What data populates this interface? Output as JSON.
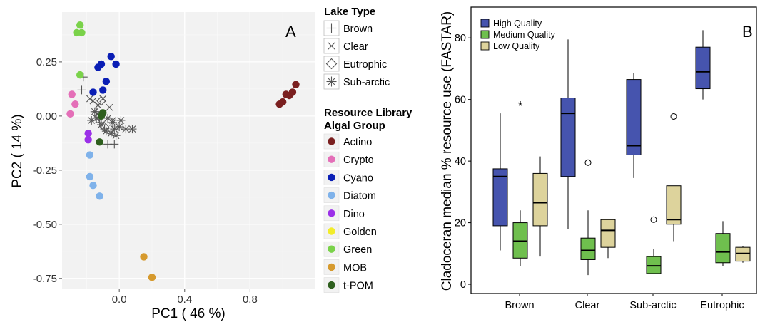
{
  "chart_data": [
    {
      "type": "scatter",
      "panel_label": "A",
      "xlabel": "PC1 ( 46 %)",
      "ylabel": "PC2 ( 14 %)",
      "xlim": [
        -0.35,
        1.2
      ],
      "ylim": [
        -0.8,
        0.48
      ],
      "xticks": [
        "0.0",
        "0.4",
        "0.8"
      ],
      "xtick_values": [
        0.0,
        0.4,
        0.8
      ],
      "yticks": [
        "0.25",
        "0.00",
        "-0.25",
        "-0.50",
        "-0.75"
      ],
      "ytick_values": [
        0.25,
        0.0,
        -0.25,
        -0.5,
        -0.75
      ],
      "grid": true,
      "background": "#f2f2f2",
      "legend_shape_title": "Lake Type",
      "legend_color_title": "Resource Library\nAlgal Group",
      "legend_placement": "right",
      "shape_legend": [
        {
          "label": "Brown",
          "marker": "plus"
        },
        {
          "label": "Clear",
          "marker": "cross"
        },
        {
          "label": "Eutrophic",
          "marker": "diamond"
        },
        {
          "label": "Sub-arctic",
          "marker": "asterisk"
        }
      ],
      "color_legend": [
        {
          "label": "Actino",
          "color": "#7a1f1f"
        },
        {
          "label": "Crypto",
          "color": "#e46fb8"
        },
        {
          "label": "Cyano",
          "color": "#0a1eb5"
        },
        {
          "label": "Diatom",
          "color": "#7fb2ea"
        },
        {
          "label": "Dino",
          "color": "#9b30e8"
        },
        {
          "label": "Golden",
          "color": "#f2ec2a"
        },
        {
          "label": "Green",
          "color": "#7ad24a"
        },
        {
          "label": "MOB",
          "color": "#d69a2e"
        },
        {
          "label": "t-POM",
          "color": "#2e5f1e"
        }
      ],
      "series": [
        {
          "name": "Actino",
          "points": [
            [
              0.98,
              0.055
            ],
            [
              1.0,
              0.065
            ],
            [
              1.02,
              0.1
            ],
            [
              1.04,
              0.095
            ],
            [
              1.06,
              0.11
            ],
            [
              1.08,
              0.145
            ]
          ]
        },
        {
          "name": "Crypto",
          "points": [
            [
              -0.3,
              0.01
            ],
            [
              -0.29,
              0.1
            ],
            [
              -0.27,
              0.055
            ]
          ]
        },
        {
          "name": "Cyano",
          "points": [
            [
              -0.16,
              0.11
            ],
            [
              -0.13,
              0.225
            ],
            [
              -0.11,
              0.24
            ],
            [
              -0.1,
              0.12
            ],
            [
              -0.08,
              0.16
            ],
            [
              -0.05,
              0.275
            ],
            [
              -0.02,
              0.24
            ]
          ]
        },
        {
          "name": "Diatom",
          "points": [
            [
              -0.18,
              -0.18
            ],
            [
              -0.18,
              -0.28
            ],
            [
              -0.16,
              -0.32
            ],
            [
              -0.12,
              -0.37
            ]
          ]
        },
        {
          "name": "Dino",
          "points": [
            [
              -0.19,
              -0.08
            ],
            [
              -0.19,
              -0.11
            ]
          ]
        },
        {
          "name": "Green",
          "points": [
            [
              -0.26,
              0.385
            ],
            [
              -0.24,
              0.42
            ],
            [
              -0.23,
              0.385
            ],
            [
              -0.24,
              0.19
            ]
          ]
        },
        {
          "name": "MOB",
          "points": [
            [
              0.15,
              -0.65
            ],
            [
              0.2,
              -0.745
            ]
          ]
        },
        {
          "name": "t-POM",
          "points": [
            [
              -0.11,
              0.0
            ],
            [
              -0.1,
              0.015
            ],
            [
              -0.12,
              -0.12
            ]
          ]
        }
      ],
      "lake_markers": [
        {
          "marker": "plus",
          "points": [
            [
              -0.23,
              0.12
            ],
            [
              -0.22,
              0.18
            ],
            [
              -0.14,
              0.02
            ],
            [
              -0.12,
              -0.03
            ],
            [
              -0.09,
              -0.06
            ],
            [
              -0.07,
              -0.13
            ],
            [
              -0.03,
              -0.13
            ]
          ]
        },
        {
          "marker": "cross",
          "points": [
            [
              -0.18,
              0.08
            ],
            [
              -0.16,
              0.07
            ],
            [
              -0.13,
              0.05
            ],
            [
              -0.12,
              0.0
            ],
            [
              -0.1,
              0.08
            ],
            [
              -0.06,
              0.04
            ],
            [
              -0.04,
              -0.02
            ]
          ]
        },
        {
          "marker": "diamond",
          "points": [
            [
              -0.11,
              0.07
            ],
            [
              -0.09,
              -0.05
            ],
            [
              -0.12,
              0.0
            ]
          ]
        },
        {
          "marker": "asterisk",
          "points": [
            [
              -0.17,
              -0.02
            ],
            [
              -0.15,
              0.02
            ],
            [
              -0.14,
              -0.01
            ],
            [
              -0.11,
              -0.04
            ],
            [
              -0.08,
              -0.07
            ],
            [
              -0.07,
              -0.01
            ],
            [
              -0.05,
              -0.08
            ],
            [
              -0.04,
              -0.03
            ],
            [
              -0.03,
              -0.06
            ],
            [
              -0.02,
              -0.09
            ],
            [
              0.0,
              -0.05
            ],
            [
              0.01,
              -0.02
            ],
            [
              0.04,
              -0.06
            ],
            [
              0.08,
              -0.06
            ]
          ]
        }
      ]
    },
    {
      "type": "box",
      "panel_label": "B",
      "xlabel": "",
      "ylabel": "Cladoceran median % resource use (FASTAR)",
      "ylim": [
        -3,
        90
      ],
      "yticks": [
        "0",
        "20",
        "40",
        "60",
        "80"
      ],
      "ytick_values": [
        0,
        20,
        40,
        60,
        80
      ],
      "categories": [
        "Brown",
        "Clear",
        "Sub-arctic",
        "Eutrophic"
      ],
      "legend_placement": "top-left",
      "series": [
        {
          "name": "High Quality",
          "color": "#4654ae",
          "boxes": [
            {
              "whisker_low": 11,
              "q1": 19,
              "median": 35,
              "q3": 37.5,
              "whisker_high": 55.5,
              "outliers": []
            },
            {
              "whisker_low": 18,
              "q1": 35,
              "median": 55.5,
              "q3": 60.5,
              "whisker_high": 79.5,
              "outliers": []
            },
            {
              "whisker_low": 34.5,
              "q1": 42,
              "median": 45,
              "q3": 66.5,
              "whisker_high": 68.5,
              "outliers": []
            },
            {
              "whisker_low": 60,
              "q1": 63.5,
              "median": 69,
              "q3": 77,
              "whisker_high": 82.5,
              "outliers": []
            }
          ]
        },
        {
          "name": "Medium Quality",
          "color": "#6fbf4e",
          "boxes": [
            {
              "whisker_low": 6,
              "q1": 8.5,
              "median": 14,
              "q3": 20,
              "whisker_high": 24,
              "outliers": [
                58.5
              ],
              "outlier_marker": "*"
            },
            {
              "whisker_low": 3,
              "q1": 8,
              "median": 11,
              "q3": 15,
              "whisker_high": 24,
              "outliers": [
                39.5
              ],
              "outlier_marker": "o"
            },
            {
              "whisker_low": 3.5,
              "q1": 3.5,
              "median": 6,
              "q3": 9,
              "whisker_high": 11.5,
              "outliers": [
                21
              ],
              "outlier_marker": "o"
            },
            {
              "whisker_low": 6,
              "q1": 7,
              "median": 10.5,
              "q3": 16.5,
              "whisker_high": 20.5,
              "outliers": []
            }
          ]
        },
        {
          "name": "Low Quality",
          "color": "#ddd39c",
          "boxes": [
            {
              "whisker_low": 9,
              "q1": 19,
              "median": 26.5,
              "q3": 36,
              "whisker_high": 41.5,
              "outliers": []
            },
            {
              "whisker_low": 8.5,
              "q1": 12,
              "median": 17.5,
              "q3": 21,
              "whisker_high": 21,
              "outliers": []
            },
            {
              "whisker_low": 14,
              "q1": 19.5,
              "median": 21,
              "q3": 32,
              "whisker_high": 32,
              "outliers": [
                54.5
              ],
              "outlier_marker": "o"
            },
            {
              "whisker_low": 7,
              "q1": 7.5,
              "median": 10,
              "q3": 12,
              "whisker_high": 12.5,
              "outliers": []
            }
          ]
        }
      ]
    }
  ]
}
